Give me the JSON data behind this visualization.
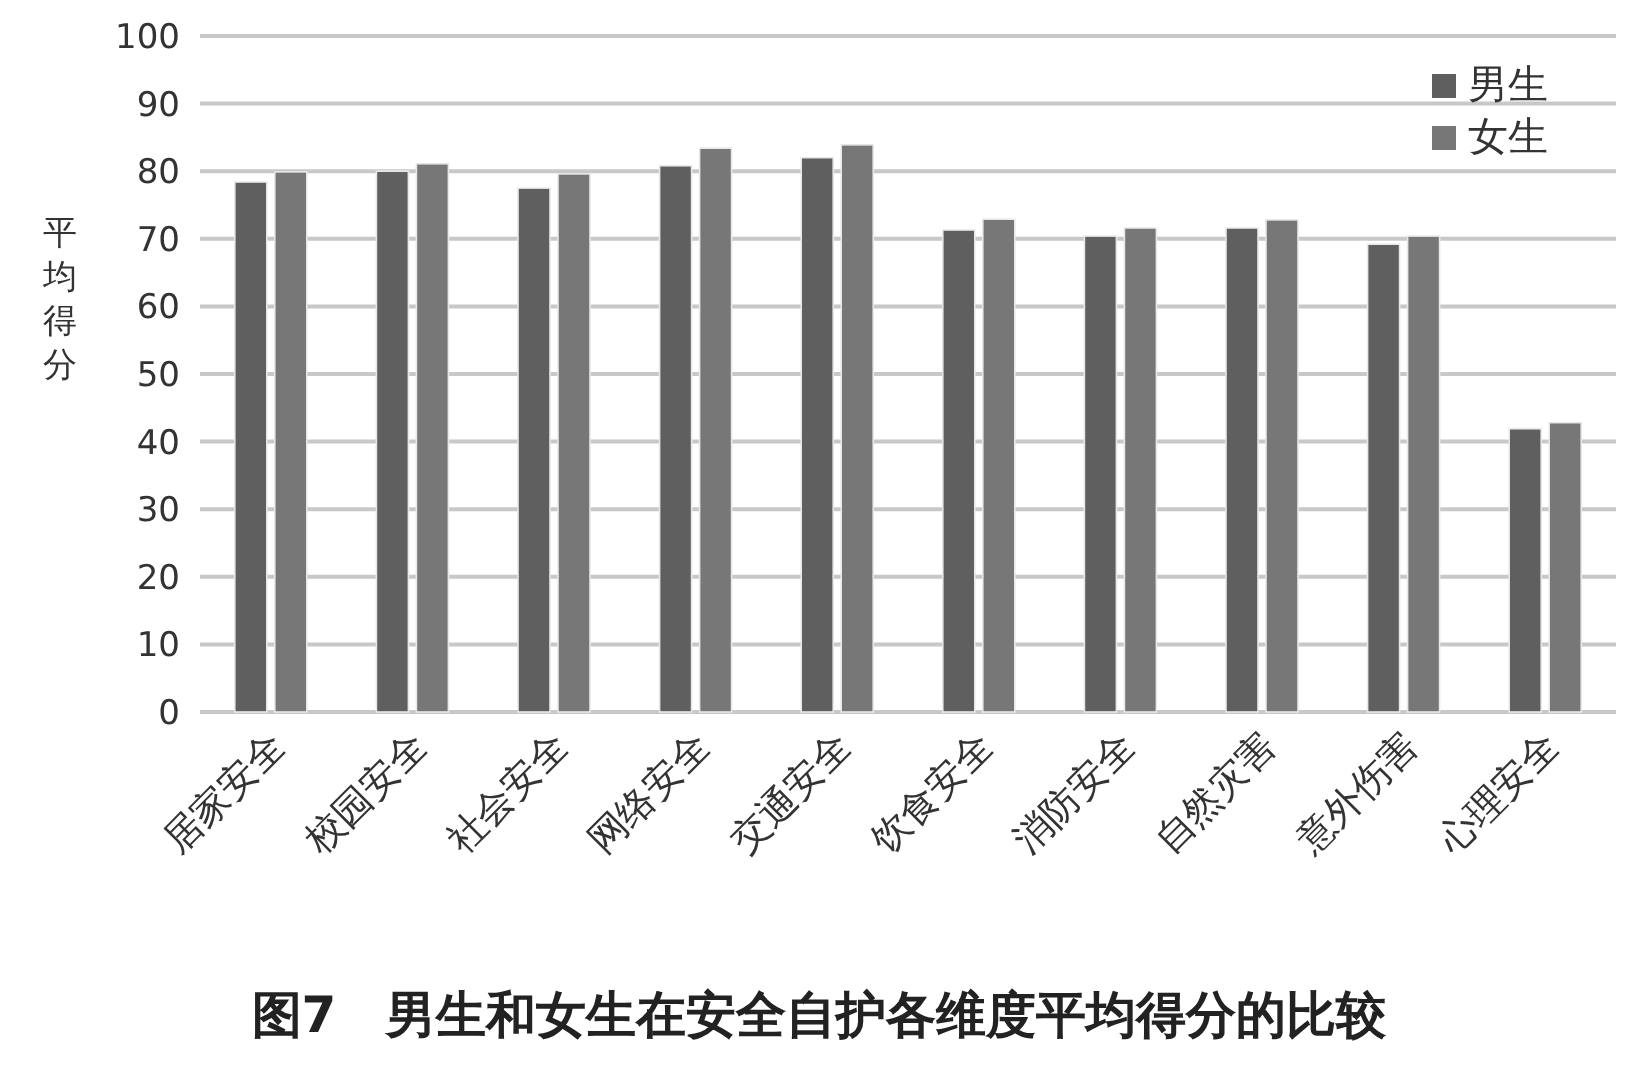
{
  "chart_data": {
    "type": "bar",
    "title": "图7　男生和女生在安全自护各维度平均得分的比较",
    "ylabel": "平均得分",
    "categories": [
      "居家安全",
      "校园安全",
      "社会安全",
      "网络安全",
      "交通安全",
      "饮食安全",
      "消防安全",
      "自然灾害",
      "意外伤害",
      "心理安全"
    ],
    "series": [
      {
        "name": "男生",
        "color": "#5f5f5f",
        "values": [
          78.4,
          80.0,
          77.5,
          80.8,
          82.0,
          71.3,
          70.4,
          71.6,
          69.2,
          41.9
        ]
      },
      {
        "name": "女生",
        "color": "#777777",
        "values": [
          79.9,
          81.1,
          79.6,
          83.4,
          83.9,
          72.9,
          71.6,
          72.8,
          70.4,
          42.8
        ]
      }
    ],
    "ylim": [
      0,
      100
    ],
    "yticks": [
      0,
      10,
      20,
      30,
      40,
      50,
      60,
      70,
      80,
      90,
      100
    ],
    "grid": "y",
    "legend": "top right"
  }
}
